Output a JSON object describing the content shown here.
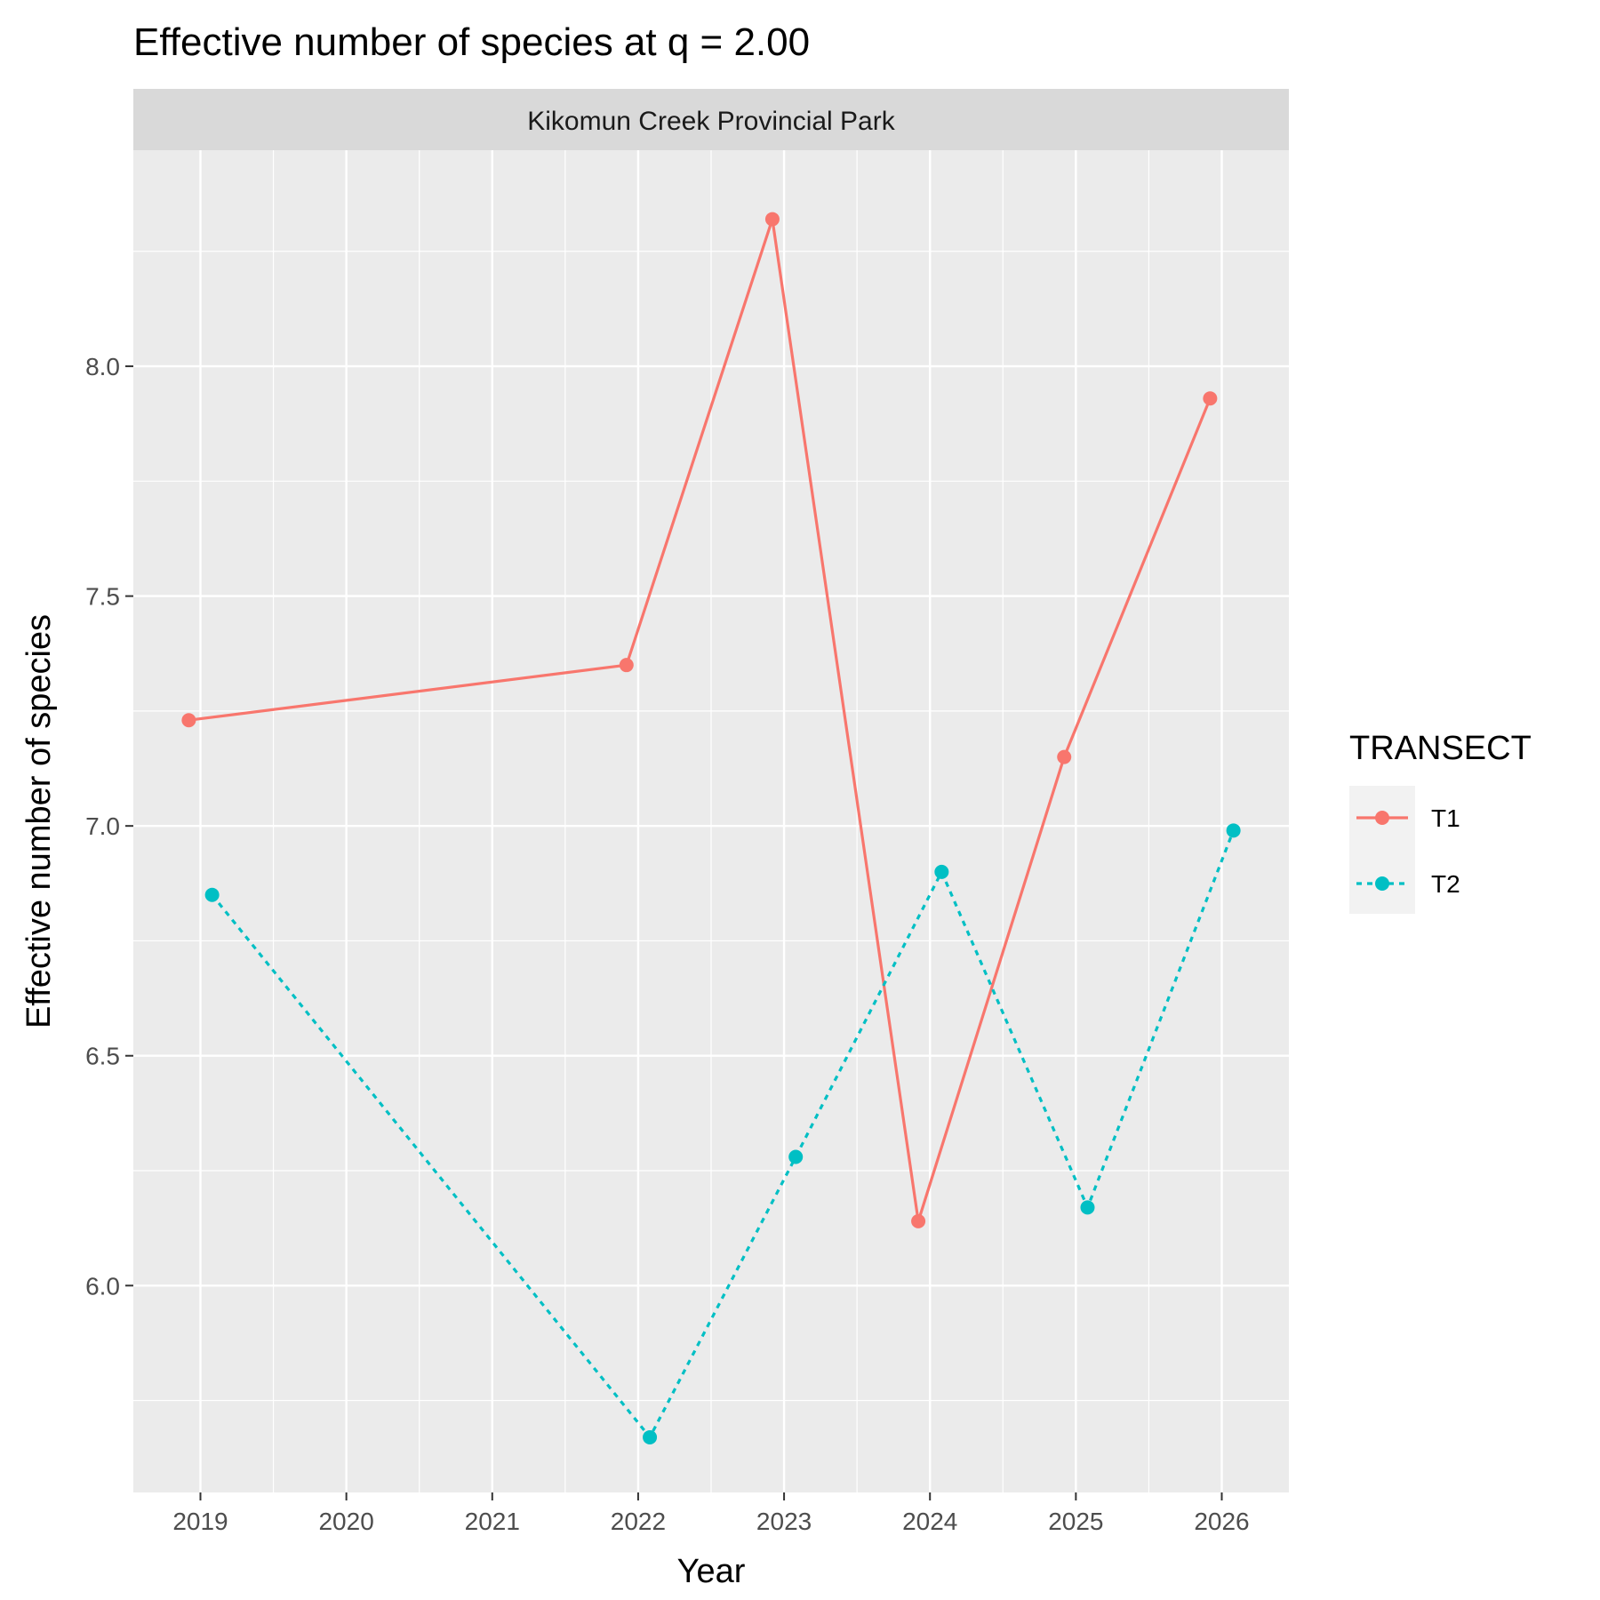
{
  "chart_data": {
    "type": "line",
    "title": "Effective number of species at q = 2.00",
    "facet": "Kikomun Creek Provincial Park",
    "xlabel": "Year",
    "ylabel": "Effective number of species",
    "x_ticks": [
      2019,
      2020,
      2021,
      2022,
      2023,
      2024,
      2025,
      2026
    ],
    "y_ticks": [
      6.0,
      6.5,
      7.0,
      7.5,
      8.0
    ],
    "y_tick_labels": [
      "6.0",
      "6.5",
      "7.0",
      "7.5",
      "8.0"
    ],
    "xlim": [
      2018.54,
      2026.46
    ],
    "ylim": [
      5.55,
      8.47
    ],
    "grid": true,
    "legend": {
      "title": "TRANSECT",
      "placement": "right"
    },
    "series": [
      {
        "name": "T1",
        "color": "#F8766D",
        "linetype": "solid",
        "x": [
          2019,
          2022,
          2023,
          2024,
          2025,
          2026
        ],
        "y": [
          7.23,
          7.35,
          8.32,
          6.14,
          7.15,
          7.93
        ]
      },
      {
        "name": "T2",
        "color": "#00BFC4",
        "linetype": "dotted",
        "x": [
          2019,
          2022,
          2023,
          2024,
          2025,
          2026
        ],
        "y": [
          6.85,
          5.67,
          6.28,
          6.9,
          6.17,
          6.99
        ]
      }
    ]
  }
}
